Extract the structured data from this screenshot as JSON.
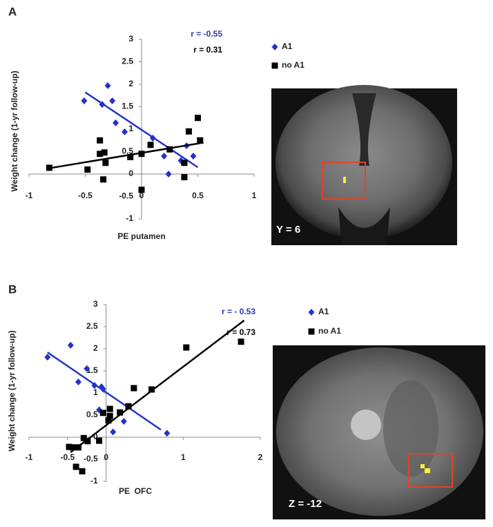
{
  "chart_data": [
    {
      "type": "scatter",
      "panel_label": "A",
      "image_label": "Y = 6",
      "x_label": "PE putamen",
      "y_label": "Weight change (1-yr follow-up)",
      "xlim": [
        -1,
        1
      ],
      "ylim": [
        -1,
        3
      ],
      "xticks": [
        -1,
        -0.5,
        0,
        0.5,
        1
      ],
      "yticks": [
        3,
        2.5,
        2,
        1.5,
        1,
        0.5,
        0,
        -0.5,
        -1
      ],
      "annotations": [
        {
          "text": "r = -0.55",
          "color": "#2b3ab0"
        },
        {
          "text": "r = 0.31",
          "color": "#000000"
        }
      ],
      "series": [
        {
          "name": "A1",
          "color": "#2233cc",
          "marker": "diamond",
          "x": [
            -0.51,
            -0.3,
            -0.35,
            -0.26,
            -0.23,
            -0.15,
            0.1,
            0.2,
            0.24,
            0.35,
            0.4,
            0.46
          ],
          "values": [
            1.63,
            1.97,
            1.55,
            1.63,
            1.14,
            0.94,
            0.8,
            0.4,
            0.0,
            0.3,
            0.63,
            0.4
          ],
          "fit": {
            "x": [
              -0.5,
              0.5
            ],
            "values": [
              1.82,
              0.15
            ]
          }
        },
        {
          "name": "no A1",
          "color": "#000000",
          "marker": "square",
          "x": [
            -0.82,
            -0.48,
            -0.37,
            -0.37,
            -0.33,
            -0.32,
            -0.34,
            -0.1,
            0.0,
            0.0,
            0.08,
            0.25,
            0.38,
            0.38,
            0.42,
            0.5,
            0.52
          ],
          "values": [
            0.14,
            0.1,
            0.75,
            0.45,
            0.48,
            0.25,
            -0.12,
            0.38,
            0.45,
            -0.35,
            0.65,
            0.55,
            0.25,
            -0.07,
            0.95,
            1.25,
            0.75
          ],
          "fit": {
            "x": [
              -0.82,
              0.55
            ],
            "values": [
              0.13,
              0.7
            ]
          }
        }
      ]
    },
    {
      "type": "scatter",
      "panel_label": "B",
      "image_label": "Z = -12",
      "x_label": "PE  OFC",
      "y_label": "Weight change (1-yr follow-up)",
      "xlim": [
        -1,
        2
      ],
      "ylim": [
        -1,
        3
      ],
      "xticks": [
        -1,
        -0.5,
        0,
        1,
        2
      ],
      "yticks": [
        3,
        2.5,
        2,
        1.5,
        1,
        0.5,
        0,
        -0.5,
        -1
      ],
      "annotations": [
        {
          "text": "r = - 0.53",
          "color": "#2b3ab0"
        },
        {
          "text": "r = 0.73",
          "color": "#000000"
        }
      ],
      "series": [
        {
          "name": "A1",
          "color": "#2233cc",
          "marker": "diamond",
          "x": [
            -0.76,
            -0.46,
            -0.36,
            -0.25,
            -0.15,
            -0.06,
            -0.04,
            -0.09,
            0.09,
            0.23,
            0.79
          ],
          "values": [
            1.81,
            2.08,
            1.25,
            1.55,
            1.17,
            1.14,
            1.09,
            0.62,
            0.12,
            0.36,
            0.09
          ],
          "fit": {
            "x": [
              -0.76,
              0.71
            ],
            "values": [
              1.92,
              0.17
            ]
          }
        },
        {
          "name": "no A1",
          "color": "#000000",
          "marker": "square",
          "x": [
            -0.48,
            -0.43,
            -0.39,
            -0.31,
            -0.36,
            -0.29,
            -0.24,
            -0.09,
            -0.04,
            0.03,
            0.05,
            0.05,
            0.18,
            0.29,
            0.36,
            0.59,
            1.04,
            1.75
          ],
          "values": [
            -0.22,
            -0.23,
            -0.67,
            -0.77,
            -0.23,
            -0.02,
            -0.09,
            -0.08,
            0.55,
            0.38,
            0.64,
            0.48,
            0.56,
            0.7,
            1.11,
            1.08,
            2.03,
            2.16
          ],
          "fit": {
            "x": [
              -0.46,
              1.79
            ],
            "values": [
              -0.34,
              2.64
            ]
          }
        }
      ]
    }
  ]
}
